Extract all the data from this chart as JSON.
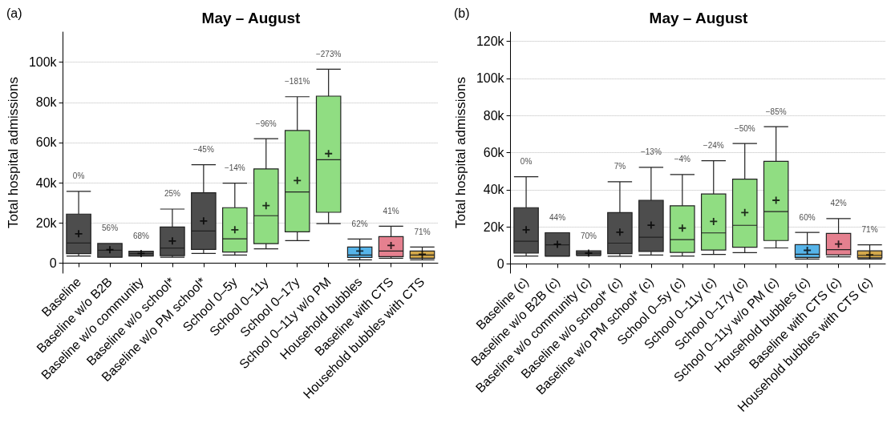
{
  "chart_data": [
    {
      "type": "box",
      "title": "May – August",
      "ylabel": "Total hospital admissions",
      "annotations": [
        "(a)"
      ],
      "categories": [
        "Baseline",
        "Baseline w/o B2B",
        "Baseline w/o community",
        "Baseline w/o school*",
        "Baseline w/o PM school*",
        "School 0–5y",
        "School 0–11y",
        "School 0–17y",
        "School 0–11y w/o PM",
        "Household bubbles",
        "Baseline with CTS",
        "Household bubbles with CTS"
      ],
      "boxes": [
        {
          "low": 3500,
          "q1": 4700,
          "median": 10000,
          "q3": 24400,
          "high": 35700,
          "mean": 14600
        },
        {
          "low": 2900,
          "q1": 2900,
          "median": 6400,
          "q3": 9800,
          "high": 9800,
          "mean": 6700
        },
        {
          "low": 3500,
          "q1": 3500,
          "median": 4700,
          "q3": 5900,
          "high": 5900,
          "mean": 4800
        },
        {
          "low": 2900,
          "q1": 3700,
          "median": 7500,
          "q3": 18000,
          "high": 26900,
          "mean": 11000
        },
        {
          "low": 4800,
          "q1": 6800,
          "median": 16000,
          "q3": 35000,
          "high": 49000,
          "mean": 21000
        },
        {
          "low": 4000,
          "q1": 5500,
          "median": 12100,
          "q3": 27600,
          "high": 39800,
          "mean": 16600
        },
        {
          "low": 7100,
          "q1": 9700,
          "median": 23600,
          "q3": 46900,
          "high": 61900,
          "mean": 28600
        },
        {
          "low": 11200,
          "q1": 15600,
          "median": 35400,
          "q3": 66000,
          "high": 82800,
          "mean": 41100
        },
        {
          "low": 19700,
          "q1": 25300,
          "median": 51500,
          "q3": 83100,
          "high": 96500,
          "mean": 54500
        },
        {
          "low": 1600,
          "q1": 2800,
          "median": 4000,
          "q3": 8000,
          "high": 12000,
          "mean": 6000
        },
        {
          "low": 2400,
          "q1": 3200,
          "median": 6000,
          "q3": 13200,
          "high": 18400,
          "mean": 8800
        },
        {
          "low": 1600,
          "q1": 2400,
          "median": 4000,
          "q3": 6000,
          "high": 8000,
          "mean": 4400
        }
      ],
      "colors": [
        "#4d4d4d",
        "#4d4d4d",
        "#4d4d4d",
        "#4d4d4d",
        "#4d4d4d",
        "#90dd82",
        "#90dd82",
        "#90dd82",
        "#90dd82",
        "#56b4e9",
        "#e5808f",
        "#d4a84a"
      ],
      "value_labels": [
        "0%",
        "56%",
        "68%",
        "25%",
        "−45%",
        "−14%",
        "−96%",
        "−181%",
        "−273%",
        "62%",
        "41%",
        "71%"
      ],
      "ylim": [
        -5000,
        115000
      ],
      "yticks": [
        {
          "value": 0,
          "label": "0"
        },
        {
          "value": 20000,
          "label": "20k"
        },
        {
          "value": 40000,
          "label": "40k"
        },
        {
          "value": 60000,
          "label": "60k"
        },
        {
          "value": 80000,
          "label": "80k"
        },
        {
          "value": 100000,
          "label": "100k"
        }
      ],
      "grid": "y"
    },
    {
      "type": "box",
      "title": "May – August",
      "ylabel": "Total hospital admissions",
      "annotations": [
        "(b)"
      ],
      "categories": [
        "Baseline (c)",
        "Baseline w/o B2B (c)",
        "Baseline w/o community (c)",
        "Baseline w/o school* (c)",
        "Baseline w/o PM school* (c)",
        "School 0–5y (c)",
        "School 0–11y (c)",
        "School 0–17y (c)",
        "School 0–11y w/o PM (c)",
        "Household bubbles (c)",
        "Baseline with CTS (c)",
        "Household bubbles with CTS (c)"
      ],
      "boxes": [
        {
          "low": 4200,
          "q1": 5800,
          "median": 12200,
          "q3": 30300,
          "high": 47000,
          "mean": 18400
        },
        {
          "low": 4100,
          "q1": 4200,
          "median": 10300,
          "q3": 16800,
          "high": 16800,
          "mean": 10600
        },
        {
          "low": 4400,
          "q1": 4600,
          "median": 5800,
          "q3": 7000,
          "high": 7000,
          "mean": 5800
        },
        {
          "low": 4100,
          "q1": 5500,
          "median": 11200,
          "q3": 27700,
          "high": 44300,
          "mean": 17100
        },
        {
          "low": 4800,
          "q1": 6700,
          "median": 14400,
          "q3": 34300,
          "high": 52100,
          "mean": 20900
        },
        {
          "low": 4200,
          "q1": 6200,
          "median": 13100,
          "q3": 31300,
          "high": 48200,
          "mean": 19300
        },
        {
          "low": 5100,
          "q1": 7500,
          "median": 16700,
          "q3": 37700,
          "high": 55600,
          "mean": 22900
        },
        {
          "low": 6100,
          "q1": 9000,
          "median": 20800,
          "q3": 45700,
          "high": 64900,
          "mean": 27700
        },
        {
          "low": 8600,
          "q1": 12600,
          "median": 28200,
          "q3": 55300,
          "high": 74000,
          "mean": 34300
        },
        {
          "low": 2600,
          "q1": 3500,
          "median": 5200,
          "q3": 10400,
          "high": 17000,
          "mean": 7300
        },
        {
          "low": 3800,
          "q1": 4900,
          "median": 7700,
          "q3": 16400,
          "high": 24400,
          "mean": 10700
        },
        {
          "low": 2600,
          "q1": 3300,
          "median": 4600,
          "q3": 7000,
          "high": 10300,
          "mean": 4900
        }
      ],
      "colors": [
        "#4d4d4d",
        "#4d4d4d",
        "#4d4d4d",
        "#4d4d4d",
        "#4d4d4d",
        "#90dd82",
        "#90dd82",
        "#90dd82",
        "#90dd82",
        "#56b4e9",
        "#e5808f",
        "#d4a84a"
      ],
      "value_labels": [
        "0%",
        "44%",
        "70%",
        "7%",
        "−13%",
        "−4%",
        "−24%",
        "−50%",
        "−85%",
        "60%",
        "42%",
        "71%"
      ],
      "ylim": [
        -5000,
        125000
      ],
      "yticks": [
        {
          "value": 0,
          "label": "0"
        },
        {
          "value": 20000,
          "label": "20k"
        },
        {
          "value": 40000,
          "label": "40k"
        },
        {
          "value": 60000,
          "label": "60k"
        },
        {
          "value": 80000,
          "label": "80k"
        },
        {
          "value": 100000,
          "label": "100k"
        },
        {
          "value": 120000,
          "label": "120k"
        }
      ],
      "grid": "y"
    }
  ]
}
